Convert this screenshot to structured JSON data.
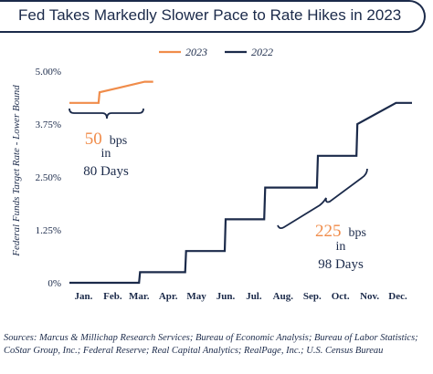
{
  "title": "Fed Takes Markedly Slower Pace to Rate Hikes in 2023",
  "colors": {
    "navy": "#1b2a4a",
    "orange": "#f08c4a"
  },
  "chart_data": {
    "type": "line",
    "title": "Fed Takes Markedly Slower Pace to Rate Hikes in 2023",
    "ylabel": "Federal Funds Target Rate - Lower Bound",
    "xlabel": "",
    "ylim": [
      0,
      5
    ],
    "yticks": [
      "0%",
      "1.25%",
      "2.50%",
      "3.75%",
      "5.00%"
    ],
    "yticks_values": [
      0,
      1.25,
      2.5,
      3.75,
      5.0
    ],
    "xticks": [
      "Jan.",
      "Feb.",
      "Mar.",
      "Apr.",
      "May",
      "Jun.",
      "Jul.",
      "Aug.",
      "Sep.",
      "Oct.",
      "Nov.",
      "Dec."
    ],
    "legend": "top-center",
    "grid": false,
    "series": [
      {
        "name": "2023",
        "color": "#f08c4a",
        "x": [
          "Jan. 1",
          "Feb. 1",
          "Feb. 2",
          "Mar. 22",
          "Mar. 31"
        ],
        "values": [
          4.25,
          4.25,
          4.5,
          4.75,
          4.75
        ]
      },
      {
        "name": "2022",
        "color": "#1b2a4a",
        "x": [
          "Jan. 1",
          "Mar. 16",
          "Mar. 17",
          "May 4",
          "May 5",
          "Jun. 15",
          "Jun. 16",
          "Jul. 27",
          "Jul. 28",
          "Sep. 21",
          "Sep. 22",
          "Nov. 2",
          "Nov. 3",
          "Dec. 14",
          "Dec. 31"
        ],
        "values": [
          0,
          0,
          0.25,
          0.25,
          0.75,
          0.75,
          1.5,
          1.5,
          2.25,
          2.25,
          3.0,
          3.0,
          3.75,
          4.25,
          4.25
        ]
      }
    ],
    "annotations": [
      {
        "number": "50",
        "unit": "bps",
        "in": "in",
        "days": "80 Days"
      },
      {
        "number": "225",
        "unit": "bps",
        "in": "in",
        "days": "98 Days"
      }
    ]
  },
  "sources": "Sources: Marcus & Millichap Research Services; Bureau of Economic Analysis; Bureau of Labor Statistics; CoStar Group, Inc.; Federal Reserve; Real Capital Analytics; RealPage, Inc.; U.S. Census Bureau"
}
